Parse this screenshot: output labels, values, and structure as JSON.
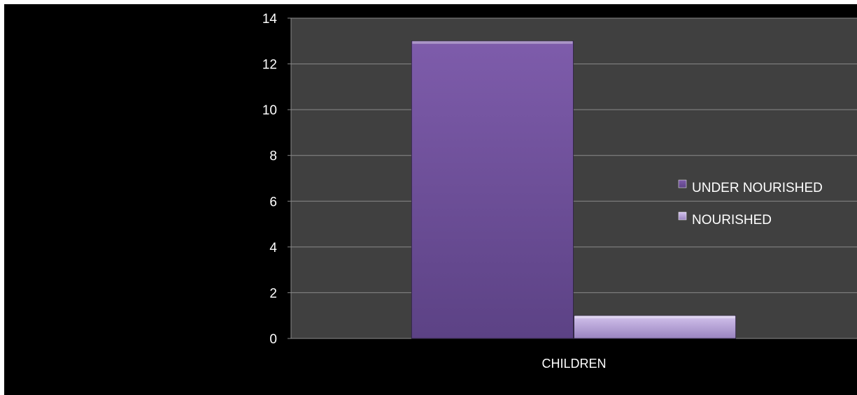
{
  "chart_data": {
    "type": "bar",
    "categories": [
      "CHILDREN"
    ],
    "series": [
      {
        "name": "UNDER NOURISHED",
        "values": [
          13
        ],
        "color": "#6b4c9a"
      },
      {
        "name": "NOURISHED",
        "values": [
          1
        ],
        "color": "#b39ddb"
      }
    ],
    "ylim": [
      0,
      14
    ],
    "yticks": [
      0,
      2,
      4,
      6,
      8,
      10,
      12,
      14
    ],
    "grid": true,
    "legend_position": "right",
    "colors": {
      "background": "#000000",
      "plot_area": "#404040",
      "gridline": "#8a8a8a",
      "text": "#ffffff"
    }
  }
}
